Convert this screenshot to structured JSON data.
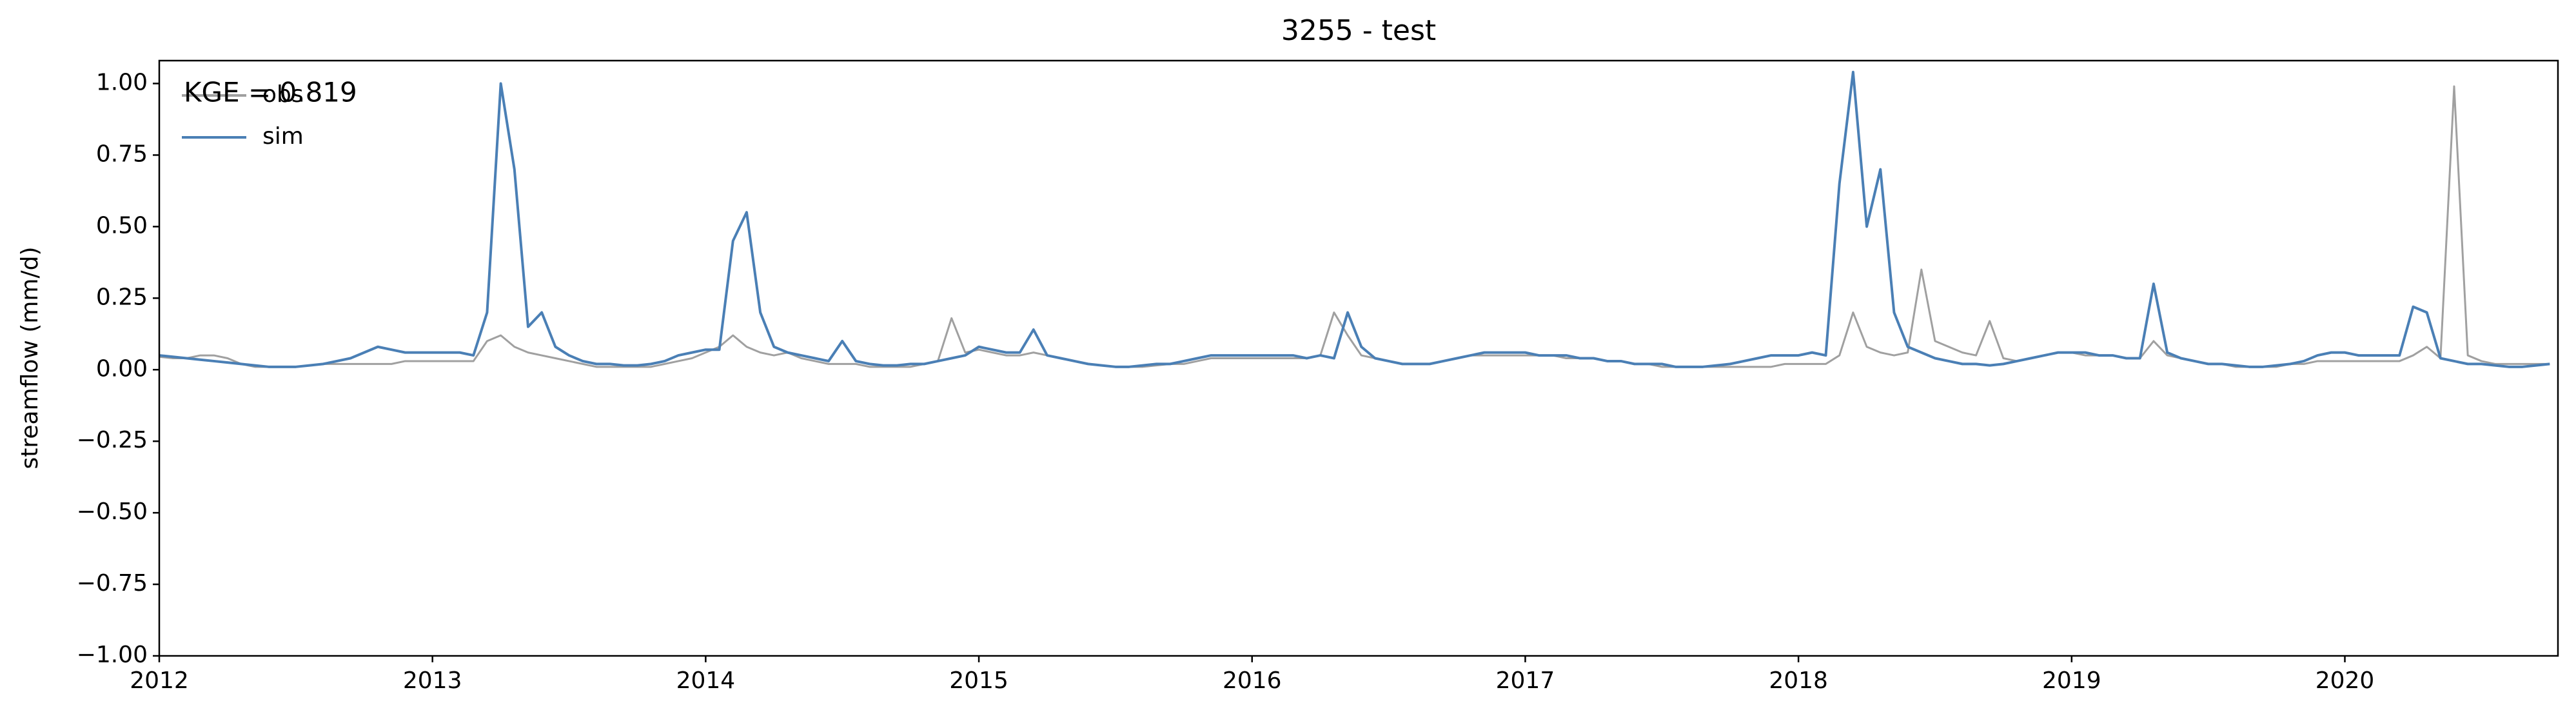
{
  "chart_data": {
    "type": "line",
    "title": "3255 - test",
    "y_label": "streamflow (mm/d)",
    "annotation": "KGE = 0.819",
    "legend": "upper left",
    "grid": false,
    "x": [
      2012,
      2012.05,
      2012.1,
      2012.15,
      2012.2,
      2012.25,
      2012.3,
      2012.35,
      2012.4,
      2012.45,
      2012.5,
      2012.55,
      2012.6,
      2012.65,
      2012.7,
      2012.75,
      2012.8,
      2012.85,
      2012.9,
      2012.95,
      2013,
      2013.05,
      2013.1,
      2013.15,
      2013.2,
      2013.25,
      2013.3,
      2013.35,
      2013.4,
      2013.45,
      2013.5,
      2013.55,
      2013.6,
      2013.65,
      2013.7,
      2013.75,
      2013.8,
      2013.85,
      2013.9,
      2013.95,
      2014,
      2014.05,
      2014.1,
      2014.15,
      2014.2,
      2014.25,
      2014.3,
      2014.35,
      2014.4,
      2014.45,
      2014.5,
      2014.55,
      2014.6,
      2014.65,
      2014.7,
      2014.75,
      2014.8,
      2014.85,
      2014.9,
      2014.95,
      2015,
      2015.05,
      2015.1,
      2015.15,
      2015.2,
      2015.25,
      2015.3,
      2015.35,
      2015.4,
      2015.45,
      2015.5,
      2015.55,
      2015.6,
      2015.65,
      2015.7,
      2015.75,
      2015.8,
      2015.85,
      2015.9,
      2015.95,
      2016,
      2016.05,
      2016.1,
      2016.15,
      2016.2,
      2016.25,
      2016.3,
      2016.35,
      2016.4,
      2016.45,
      2016.5,
      2016.55,
      2016.6,
      2016.65,
      2016.7,
      2016.75,
      2016.8,
      2016.85,
      2016.9,
      2016.95,
      2017,
      2017.05,
      2017.1,
      2017.15,
      2017.2,
      2017.25,
      2017.3,
      2017.35,
      2017.4,
      2017.45,
      2017.5,
      2017.55,
      2017.6,
      2017.65,
      2017.7,
      2017.75,
      2017.8,
      2017.85,
      2017.9,
      2017.95,
      2018,
      2018.05,
      2018.1,
      2018.15,
      2018.2,
      2018.25,
      2018.3,
      2018.35,
      2018.4,
      2018.45,
      2018.5,
      2018.55,
      2018.6,
      2018.65,
      2018.7,
      2018.75,
      2018.8,
      2018.85,
      2018.9,
      2018.95,
      2019,
      2019.05,
      2019.1,
      2019.15,
      2019.2,
      2019.25,
      2019.3,
      2019.35,
      2019.4,
      2019.45,
      2019.5,
      2019.55,
      2019.6,
      2019.65,
      2019.7,
      2019.75,
      2019.8,
      2019.85,
      2019.9,
      2019.95,
      2020,
      2020.05,
      2020.1,
      2020.15,
      2020.2,
      2020.25,
      2020.3,
      2020.35,
      2020.4,
      2020.45,
      2020.5,
      2020.55,
      2020.6,
      2020.65,
      2020.7,
      2020.75
    ],
    "series": [
      {
        "name": "obs",
        "color": "#a0a0a0",
        "values": [
          0.045,
          0.04,
          0.04,
          0.05,
          0.05,
          0.04,
          0.02,
          0.01,
          0.01,
          0.01,
          0.01,
          0.015,
          0.02,
          0.02,
          0.02,
          0.02,
          0.02,
          0.02,
          0.03,
          0.03,
          0.03,
          0.03,
          0.03,
          0.03,
          0.1,
          0.12,
          0.08,
          0.06,
          0.05,
          0.04,
          0.03,
          0.02,
          0.01,
          0.01,
          0.01,
          0.01,
          0.01,
          0.02,
          0.03,
          0.04,
          0.06,
          0.08,
          0.12,
          0.08,
          0.06,
          0.05,
          0.06,
          0.04,
          0.03,
          0.02,
          0.02,
          0.02,
          0.01,
          0.01,
          0.01,
          0.01,
          0.02,
          0.03,
          0.18,
          0.06,
          0.07,
          0.06,
          0.05,
          0.05,
          0.06,
          0.05,
          0.04,
          0.03,
          0.02,
          0.015,
          0.01,
          0.01,
          0.01,
          0.015,
          0.02,
          0.02,
          0.03,
          0.04,
          0.04,
          0.04,
          0.04,
          0.04,
          0.04,
          0.04,
          0.04,
          0.05,
          0.2,
          0.12,
          0.05,
          0.04,
          0.03,
          0.02,
          0.02,
          0.02,
          0.03,
          0.04,
          0.05,
          0.05,
          0.05,
          0.05,
          0.05,
          0.05,
          0.05,
          0.04,
          0.04,
          0.04,
          0.03,
          0.03,
          0.02,
          0.02,
          0.01,
          0.01,
          0.01,
          0.01,
          0.01,
          0.01,
          0.01,
          0.01,
          0.01,
          0.02,
          0.02,
          0.02,
          0.02,
          0.05,
          0.2,
          0.08,
          0.06,
          0.05,
          0.06,
          0.35,
          0.1,
          0.08,
          0.06,
          0.05,
          0.17,
          0.04,
          0.03,
          0.04,
          0.05,
          0.06,
          0.06,
          0.05,
          0.05,
          0.05,
          0.04,
          0.04,
          0.1,
          0.05,
          0.04,
          0.03,
          0.02,
          0.02,
          0.01,
          0.01,
          0.01,
          0.01,
          0.02,
          0.02,
          0.03,
          0.03,
          0.03,
          0.03,
          0.03,
          0.03,
          0.03,
          0.05,
          0.08,
          0.04,
          0.99,
          0.05,
          0.03,
          0.02,
          0.02,
          0.02,
          0.02,
          0.02
        ]
      },
      {
        "name": "sim",
        "color": "#4a7fb5",
        "values": [
          0.05,
          0.045,
          0.04,
          0.035,
          0.03,
          0.025,
          0.02,
          0.015,
          0.01,
          0.01,
          0.01,
          0.015,
          0.02,
          0.03,
          0.04,
          0.06,
          0.08,
          0.07,
          0.06,
          0.06,
          0.06,
          0.06,
          0.06,
          0.05,
          0.2,
          1.0,
          0.7,
          0.15,
          0.2,
          0.08,
          0.05,
          0.03,
          0.02,
          0.02,
          0.015,
          0.015,
          0.02,
          0.03,
          0.05,
          0.06,
          0.07,
          0.07,
          0.45,
          0.55,
          0.2,
          0.08,
          0.06,
          0.05,
          0.04,
          0.03,
          0.1,
          0.03,
          0.02,
          0.015,
          0.015,
          0.02,
          0.02,
          0.03,
          0.04,
          0.05,
          0.08,
          0.07,
          0.06,
          0.06,
          0.14,
          0.05,
          0.04,
          0.03,
          0.02,
          0.015,
          0.01,
          0.01,
          0.015,
          0.02,
          0.02,
          0.03,
          0.04,
          0.05,
          0.05,
          0.05,
          0.05,
          0.05,
          0.05,
          0.05,
          0.04,
          0.05,
          0.04,
          0.2,
          0.08,
          0.04,
          0.03,
          0.02,
          0.02,
          0.02,
          0.03,
          0.04,
          0.05,
          0.06,
          0.06,
          0.06,
          0.06,
          0.05,
          0.05,
          0.05,
          0.04,
          0.04,
          0.03,
          0.03,
          0.02,
          0.02,
          0.02,
          0.01,
          0.01,
          0.01,
          0.015,
          0.02,
          0.03,
          0.04,
          0.05,
          0.05,
          0.05,
          0.06,
          0.05,
          0.65,
          1.04,
          0.5,
          0.7,
          0.2,
          0.08,
          0.06,
          0.04,
          0.03,
          0.02,
          0.02,
          0.015,
          0.02,
          0.03,
          0.04,
          0.05,
          0.06,
          0.06,
          0.06,
          0.05,
          0.05,
          0.04,
          0.04,
          0.3,
          0.06,
          0.04,
          0.03,
          0.02,
          0.02,
          0.015,
          0.01,
          0.01,
          0.015,
          0.02,
          0.03,
          0.05,
          0.06,
          0.06,
          0.05,
          0.05,
          0.05,
          0.05,
          0.22,
          0.2,
          0.04,
          0.03,
          0.02,
          0.02,
          0.015,
          0.01,
          0.01,
          0.015,
          0.02
        ]
      }
    ],
    "xlim": [
      2012,
      2020.78
    ],
    "xticks": [
      2012,
      2013,
      2014,
      2015,
      2016,
      2017,
      2018,
      2019,
      2020
    ],
    "ylim": [
      -1,
      1.08
    ],
    "yticks": [
      {
        "value": -1,
        "label": "−1.00"
      },
      {
        "value": -0.75,
        "label": "−0.75"
      },
      {
        "value": -0.5,
        "label": "−0.50"
      },
      {
        "value": -0.25,
        "label": "−0.25"
      },
      {
        "value": 0,
        "label": "0.00"
      },
      {
        "value": 0.25,
        "label": "0.25"
      },
      {
        "value": 0.5,
        "label": "0.50"
      },
      {
        "value": 0.75,
        "label": "0.75"
      },
      {
        "value": 1,
        "label": "1.00"
      }
    ]
  }
}
